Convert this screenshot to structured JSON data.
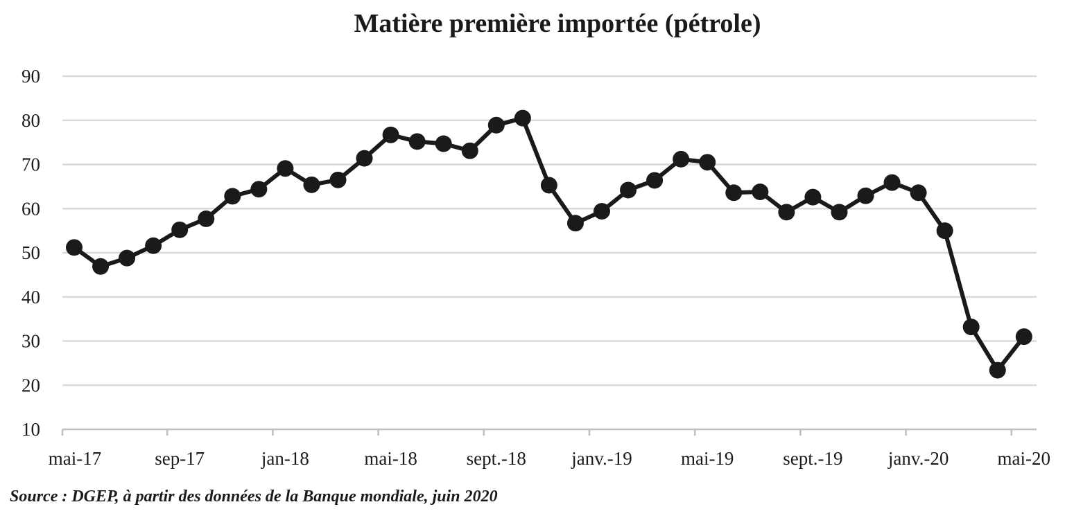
{
  "chart_data": {
    "type": "line",
    "title": "Matière première importée (pétrole)",
    "xlabel": "",
    "ylabel": "",
    "ylim": [
      10,
      90
    ],
    "yticks": [
      10,
      20,
      30,
      40,
      50,
      60,
      70,
      80,
      90
    ],
    "grid": true,
    "legend": "none",
    "x": [
      "mai-17",
      "juin-17",
      "juil.-17",
      "août-17",
      "sep-17",
      "oct.-17",
      "nov.-17",
      "déc.-17",
      "jan-18",
      "févr.-18",
      "mars-18",
      "avr.-18",
      "mai-18",
      "juin-18",
      "juil.-18",
      "août-18",
      "sept.-18",
      "oct.-18",
      "nov.-18",
      "déc.-18",
      "janv.-19",
      "févr.-19",
      "mars-19",
      "avr.-19",
      "mai-19",
      "juin-19",
      "juil.-19",
      "août-19",
      "sept.-19",
      "oct.-19",
      "nov.-19",
      "déc.-19",
      "janv.-20",
      "févr.-20",
      "mars-20",
      "avr.-20",
      "mai-20"
    ],
    "x_tick_labels": [
      "mai-17",
      "sep-17",
      "jan-18",
      "mai-18",
      "sept.-18",
      "janv.-19",
      "mai-19",
      "sept.-19",
      "janv.-20",
      "mai-20"
    ],
    "series": [
      {
        "values": [
          51.2,
          46.9,
          48.8,
          51.6,
          55.2,
          57.7,
          62.8,
          64.4,
          69.1,
          65.4,
          66.5,
          71.4,
          76.7,
          75.2,
          74.7,
          73.1,
          78.9,
          80.5,
          65.3,
          56.7,
          59.4,
          64.2,
          66.4,
          71.2,
          70.5,
          63.6,
          63.8,
          59.2,
          62.6,
          59.2,
          62.9,
          65.9,
          63.6,
          55.0,
          33.2,
          23.4,
          31.0
        ],
        "color": "#1a1a1a"
      }
    ]
  },
  "source_note": "Source : DGEP, à partir des données de la Banque mondiale, juin 2020"
}
